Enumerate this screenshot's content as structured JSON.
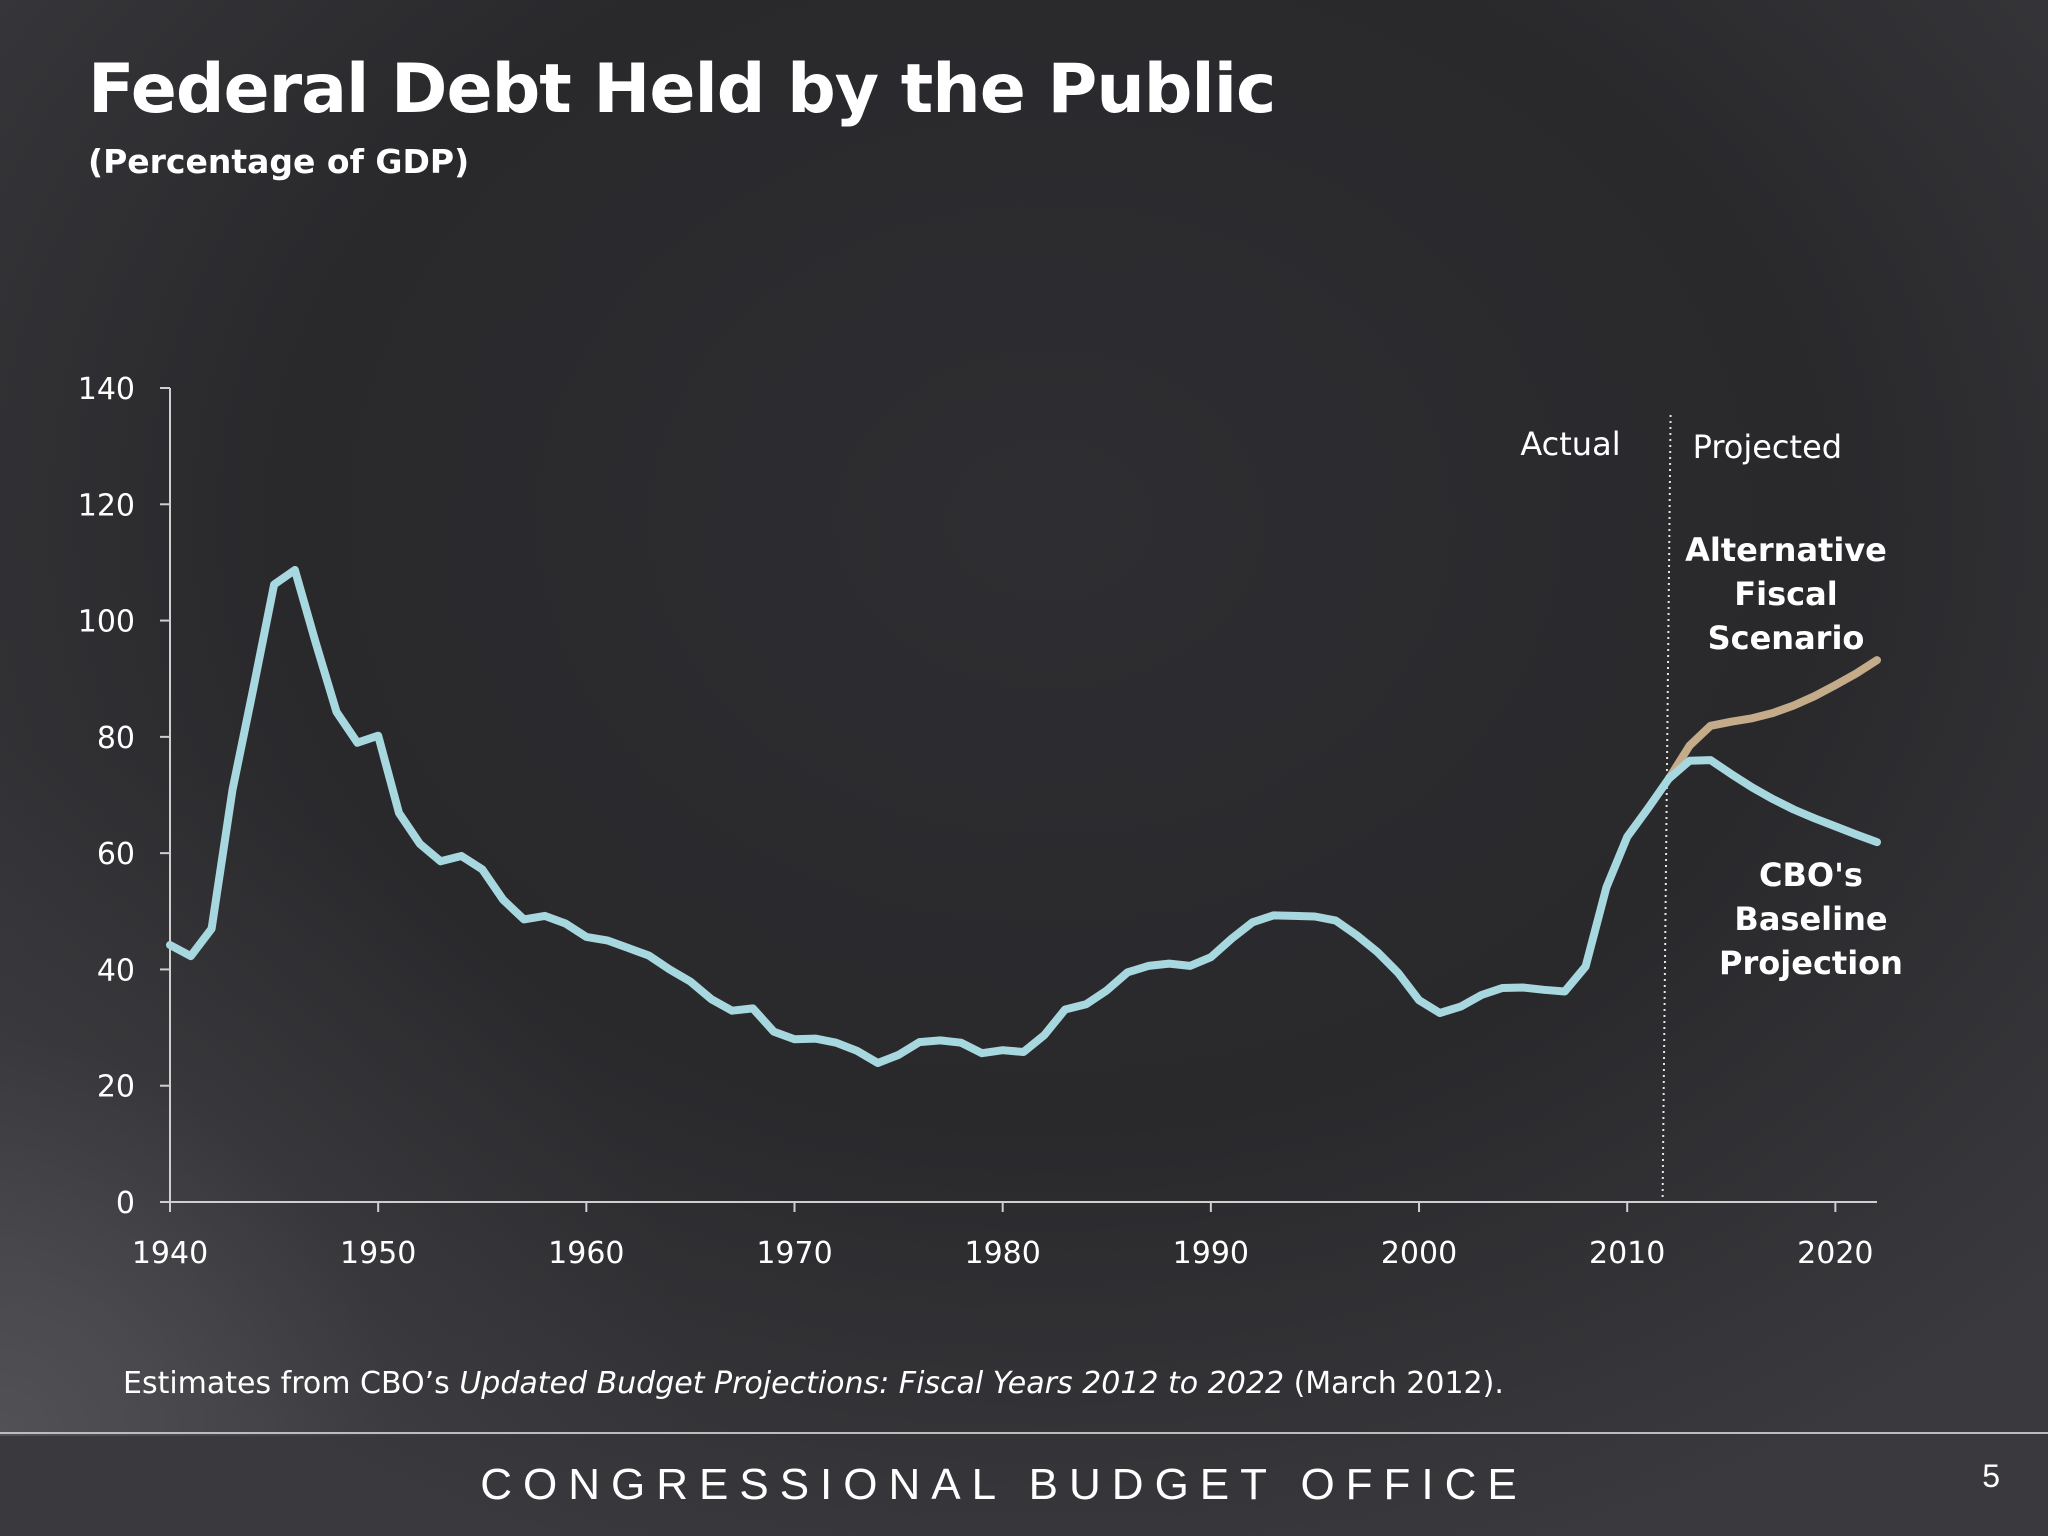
{
  "slide": {
    "title": "Federal Debt Held by the Public",
    "subtitle": "(Percentage of GDP)",
    "footnote_prefix": "Estimates from CBO’s ",
    "footnote_italic": "Updated Budget Projections: Fiscal Years 2012 to 2022",
    "footnote_suffix": " (March 2012).",
    "footer_org": "CONGRESSIONAL BUDGET OFFICE",
    "page_number": "5"
  },
  "colors": {
    "actual_line": "#a8d8df",
    "baseline_line": "#a8d8df",
    "alternative_line": "#c4ab8a",
    "axis": "#cfcfcf",
    "text": "#ffffff"
  },
  "chart_data": {
    "type": "line",
    "title": "Federal Debt Held by the Public",
    "ylabel": "",
    "xlabel": "",
    "xlim": [
      1940,
      2022
    ],
    "ylim": [
      0,
      140
    ],
    "x_ticks": [
      1940,
      1950,
      1960,
      1970,
      1980,
      1990,
      2000,
      2010,
      2020
    ],
    "y_ticks": [
      0,
      20,
      40,
      60,
      80,
      100,
      120,
      140
    ],
    "grid": false,
    "divider": {
      "x": 2011.7,
      "left_label": "Actual",
      "right_label": "Projected"
    },
    "series": [
      {
        "key": "actual",
        "x": [
          1940,
          1941,
          1942,
          1943,
          1944,
          1945,
          1946,
          1947,
          1948,
          1949,
          1950,
          1951,
          1952,
          1953,
          1954,
          1955,
          1956,
          1957,
          1958,
          1959,
          1960,
          1961,
          1962,
          1963,
          1964,
          1965,
          1966,
          1967,
          1968,
          1969,
          1970,
          1971,
          1972,
          1973,
          1974,
          1975,
          1976,
          1977,
          1978,
          1979,
          1980,
          1981,
          1982,
          1983,
          1984,
          1985,
          1986,
          1987,
          1988,
          1989,
          1990,
          1991,
          1992,
          1993,
          1994,
          1995,
          1996,
          1997,
          1998,
          1999,
          2000,
          2001,
          2002,
          2003,
          2004,
          2005,
          2006,
          2007,
          2008,
          2009,
          2010,
          2011,
          2012
        ],
        "y": [
          44.2,
          42.3,
          47.0,
          70.9,
          88.3,
          106.2,
          108.7,
          96.2,
          84.3,
          79.0,
          80.2,
          66.9,
          61.6,
          58.6,
          59.5,
          57.2,
          52.0,
          48.6,
          49.2,
          47.9,
          45.6,
          45.0,
          43.7,
          42.4,
          40.0,
          37.9,
          34.9,
          32.9,
          33.3,
          29.3,
          28.0,
          28.1,
          27.4,
          26.0,
          23.9,
          25.3,
          27.5,
          27.8,
          27.4,
          25.6,
          26.1,
          25.8,
          28.7,
          33.1,
          34.0,
          36.4,
          39.5,
          40.6,
          41.0,
          40.6,
          42.1,
          45.3,
          48.1,
          49.3,
          49.2,
          49.1,
          48.4,
          45.9,
          43.0,
          39.4,
          34.7,
          32.5,
          33.6,
          35.6,
          36.8,
          36.9,
          36.5,
          36.2,
          40.5,
          54.1,
          62.8,
          67.7,
          72.8
        ]
      },
      {
        "key": "baseline",
        "label": "CBO's Baseline Projection",
        "x": [
          2012,
          2013,
          2014,
          2015,
          2016,
          2017,
          2018,
          2019,
          2020,
          2021,
          2022
        ],
        "y": [
          72.8,
          75.9,
          76.0,
          73.6,
          71.3,
          69.3,
          67.5,
          66.0,
          64.6,
          63.2,
          61.9
        ]
      },
      {
        "key": "alternative",
        "label": "Alternative Fiscal Scenario",
        "x": [
          2012,
          2013,
          2014,
          2015,
          2016,
          2017,
          2018,
          2019,
          2020,
          2021,
          2022
        ],
        "y": [
          72.8,
          78.5,
          81.9,
          82.6,
          83.2,
          84.1,
          85.4,
          87.0,
          88.9,
          90.9,
          93.2
        ]
      }
    ],
    "labels": {
      "actual": "Actual",
      "projected": "Projected",
      "alternative_lines": [
        "Alternative",
        "Fiscal",
        "Scenario"
      ],
      "baseline_lines": [
        "CBO's",
        "Baseline",
        "Projection"
      ]
    }
  }
}
